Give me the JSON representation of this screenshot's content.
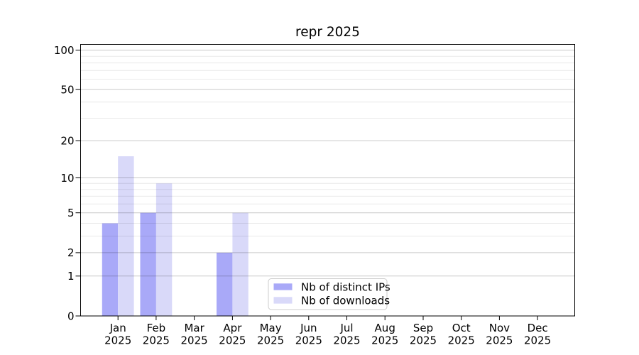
{
  "chart_data": {
    "type": "bar",
    "title": "repr 2025",
    "categories": [
      "Jan",
      "Feb",
      "Mar",
      "Apr",
      "May",
      "Jun",
      "Jul",
      "Aug",
      "Sep",
      "Oct",
      "Nov",
      "Dec"
    ],
    "x_tick_second_line": "2025",
    "series": [
      {
        "name": "Nb of distinct IPs",
        "color": "#a9a9f8",
        "values": [
          4,
          5,
          0,
          2,
          0,
          0,
          0,
          0,
          0,
          0,
          0,
          0
        ]
      },
      {
        "name": "Nb of downloads",
        "color": "#d9d9f9",
        "values": [
          15,
          9,
          0,
          5,
          0,
          0,
          0,
          0,
          0,
          0,
          0,
          0
        ]
      }
    ],
    "yscale": "log1p",
    "ylim": [
      0,
      111
    ],
    "y_major_ticks": [
      0,
      1,
      2,
      5,
      10,
      20,
      50,
      100
    ],
    "y_minor_gridlines": [
      3,
      4,
      6,
      7,
      8,
      9,
      30,
      40,
      60,
      70,
      80,
      90
    ],
    "grid": true,
    "grid_above_bars": true,
    "legend_entries": [
      "Nb of distinct IPs",
      "Nb of downloads"
    ],
    "colors": {
      "background": "#ffffff",
      "axis": "#000000",
      "text": "#000000",
      "major_grid": "rgba(0,0,0,0.21)",
      "minor_grid": "rgba(0,0,0,0.085)",
      "legend_border": "#cccccc",
      "legend_bg": "#ffffff"
    }
  }
}
